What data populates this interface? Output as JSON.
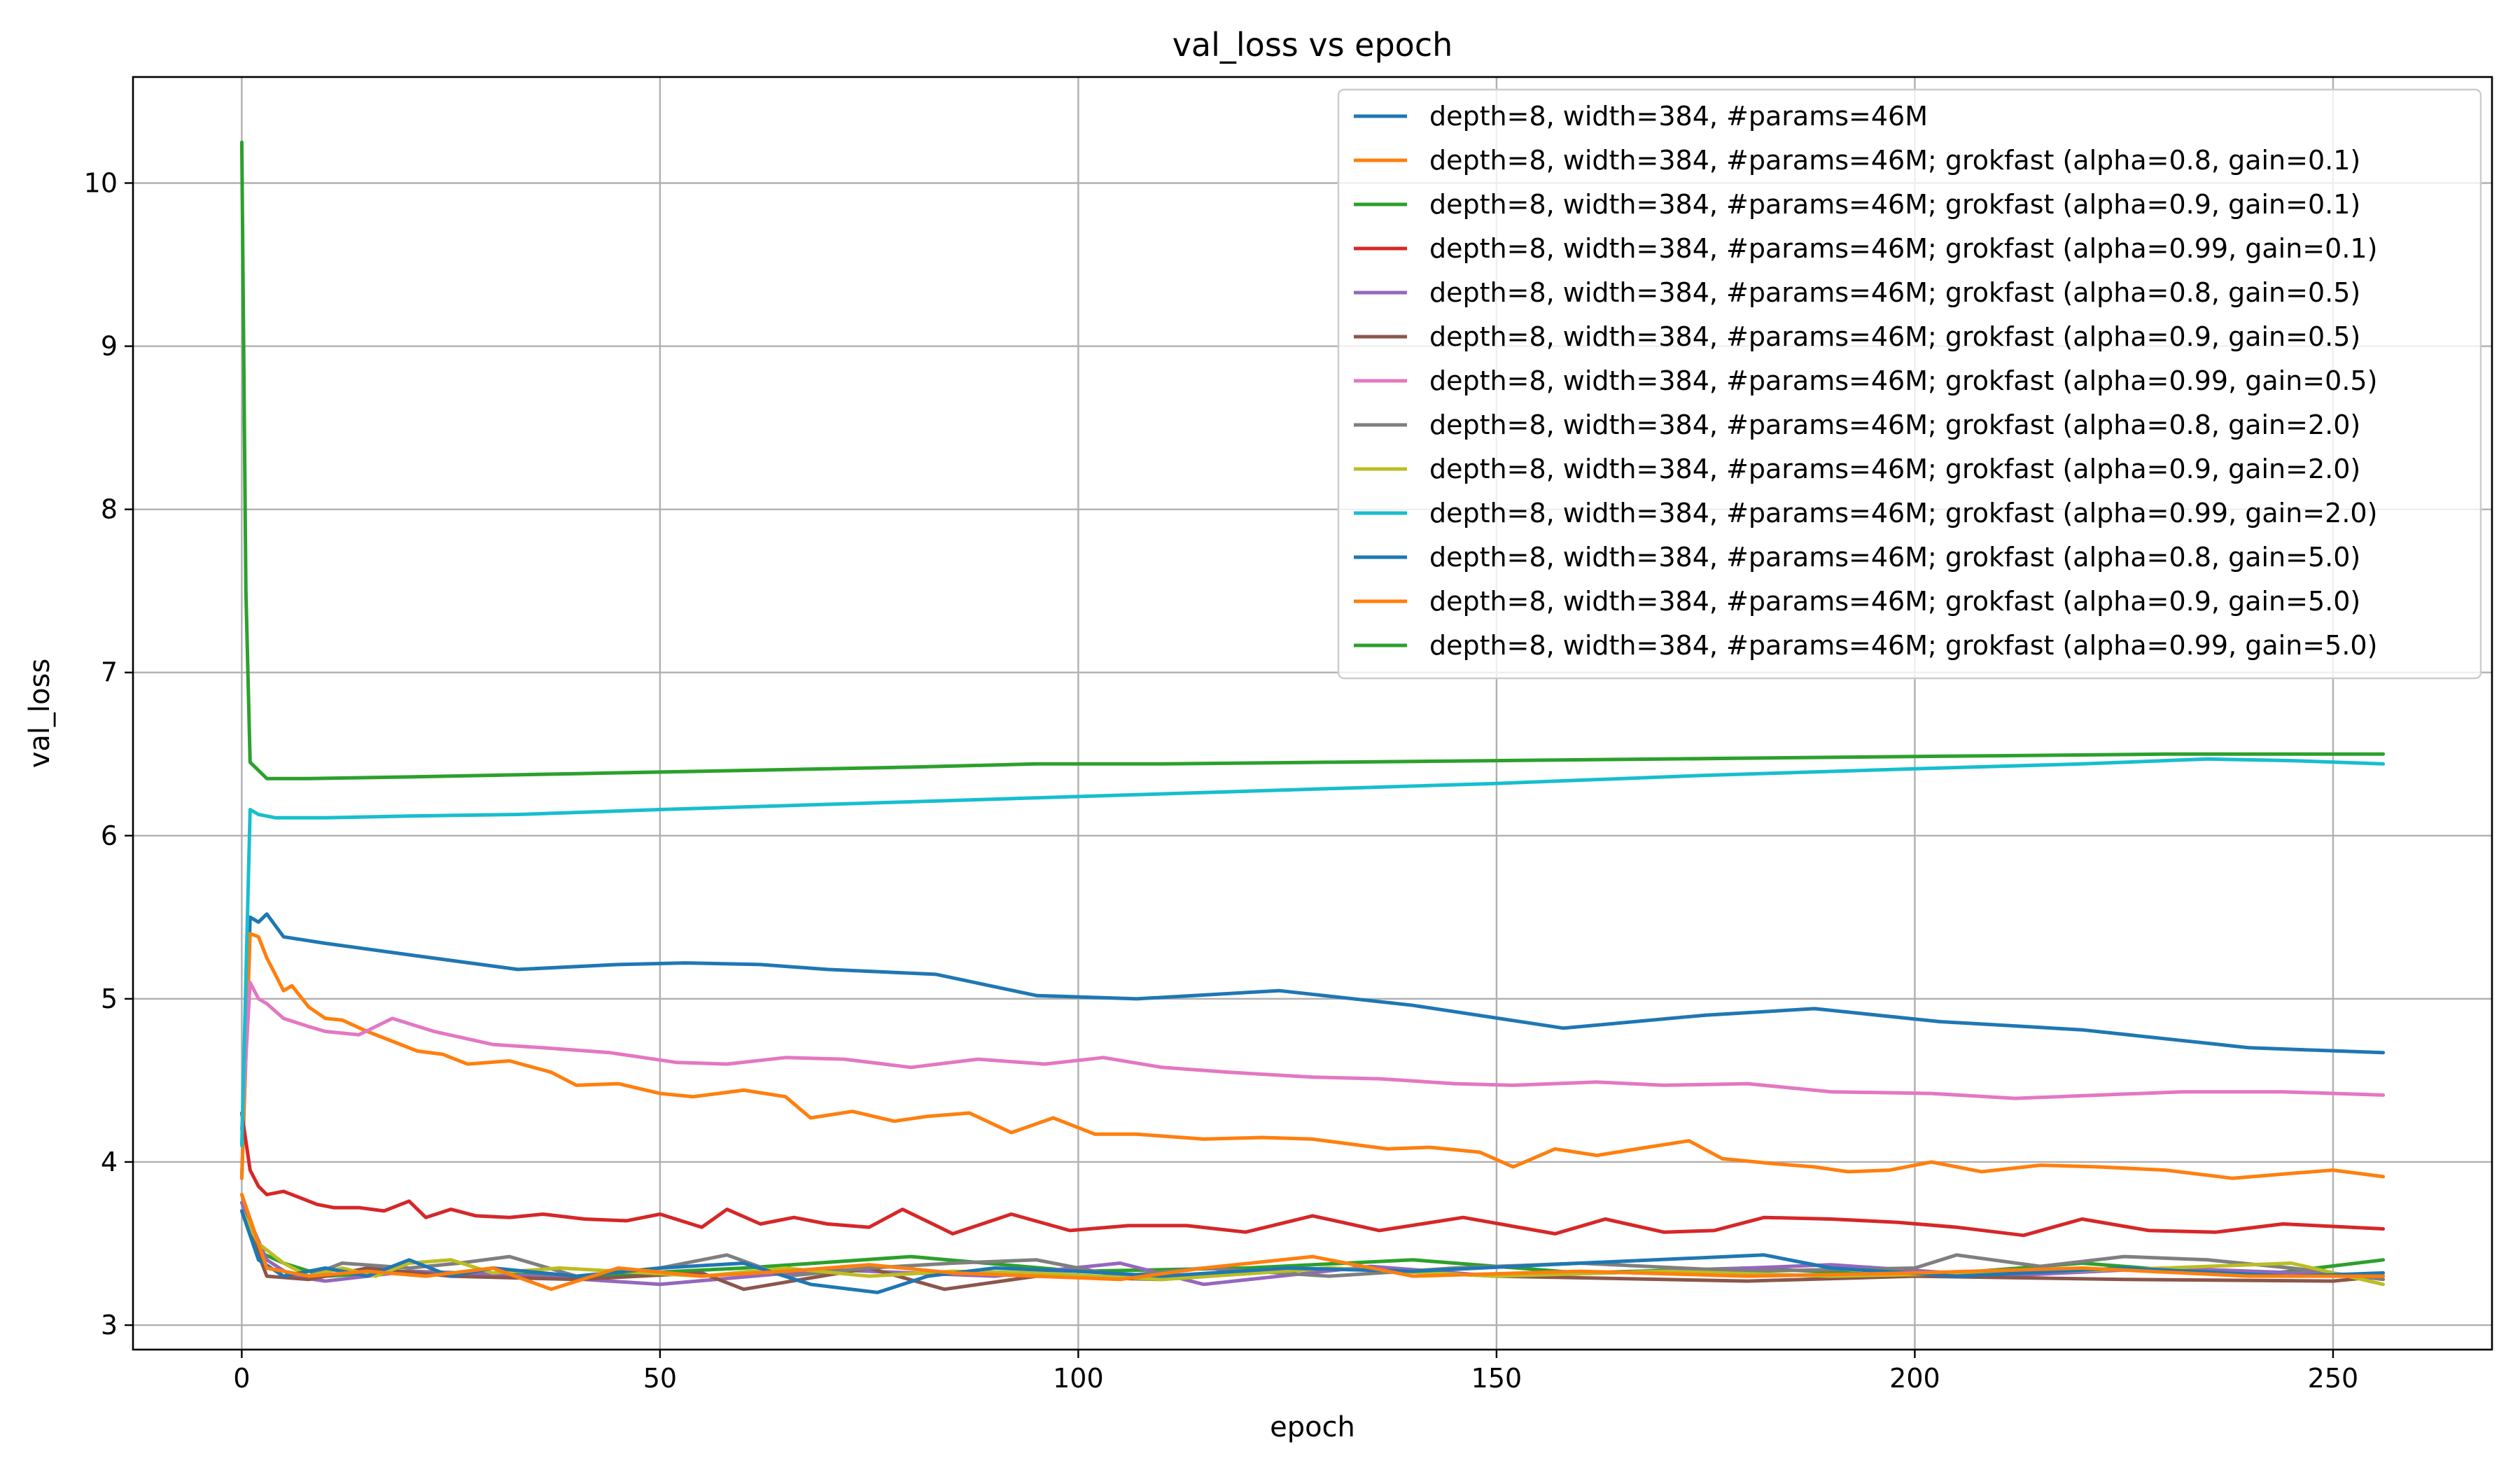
{
  "chart_data": {
    "type": "line",
    "title": "val_loss vs epoch",
    "xlabel": "epoch",
    "ylabel": "val_loss",
    "xlim": [
      -13,
      269
    ],
    "ylim": [
      2.85,
      10.65
    ],
    "xticks": [
      0,
      50,
      100,
      150,
      200,
      250
    ],
    "yticks": [
      3,
      4,
      5,
      6,
      7,
      8,
      9,
      10
    ],
    "grid": true,
    "legend_position": "top-right",
    "series": [
      {
        "name": "depth=8, width=384, #params=46M",
        "color": "#1f77b4",
        "x": [
          0,
          1,
          2,
          3,
          5,
          10,
          20,
          33,
          45,
          53,
          62,
          70,
          83,
          95,
          107,
          124,
          140,
          158,
          175,
          188,
          203,
          220,
          240,
          256
        ],
        "y": [
          3.9,
          5.5,
          5.47,
          5.52,
          5.38,
          5.34,
          5.27,
          5.18,
          5.21,
          5.22,
          5.21,
          5.18,
          5.15,
          5.02,
          5.0,
          5.05,
          4.96,
          4.82,
          4.9,
          4.94,
          4.86,
          4.81,
          4.7,
          4.67
        ]
      },
      {
        "name": "depth=8, width=384, #params=46M; grokfast (alpha=0.8, gain=0.1)",
        "color": "#ff7f0e",
        "x": [
          0,
          1,
          2,
          3,
          4,
          5,
          6,
          8,
          10,
          12,
          15,
          18,
          21,
          24,
          27,
          32,
          37,
          40,
          45,
          50,
          54,
          60,
          65,
          68,
          73,
          78,
          82,
          87,
          92,
          97,
          102,
          107,
          115,
          122,
          128,
          137,
          142,
          148,
          152,
          157,
          162,
          168,
          173,
          177,
          183,
          188,
          192,
          197,
          202,
          208,
          215,
          222,
          230,
          238,
          245,
          250,
          256
        ],
        "y": [
          3.9,
          5.4,
          5.38,
          5.25,
          5.15,
          5.05,
          5.08,
          4.95,
          4.88,
          4.87,
          4.8,
          4.74,
          4.68,
          4.66,
          4.6,
          4.62,
          4.55,
          4.47,
          4.48,
          4.42,
          4.4,
          4.44,
          4.4,
          4.27,
          4.31,
          4.25,
          4.28,
          4.3,
          4.18,
          4.27,
          4.17,
          4.17,
          4.14,
          4.15,
          4.14,
          4.08,
          4.09,
          4.06,
          3.97,
          4.08,
          4.04,
          4.09,
          4.13,
          4.02,
          3.99,
          3.97,
          3.94,
          3.95,
          4.0,
          3.94,
          3.98,
          3.97,
          3.95,
          3.9,
          3.93,
          3.95,
          3.91
        ]
      },
      {
        "name": "depth=8, width=384, #params=46M; grokfast (alpha=0.9, gain=0.1)",
        "color": "#2ca02c",
        "x": [
          0,
          2,
          5,
          10,
          20,
          40,
          60,
          80,
          100,
          120,
          140,
          160,
          180,
          200,
          220,
          240,
          256
        ],
        "y": [
          3.8,
          3.45,
          3.38,
          3.3,
          3.33,
          3.3,
          3.35,
          3.42,
          3.33,
          3.35,
          3.4,
          3.32,
          3.35,
          3.3,
          3.38,
          3.3,
          3.4
        ]
      },
      {
        "name": "depth=8, width=384, #params=46M; grokfast (alpha=0.99, gain=0.1)",
        "color": "#d62728",
        "x": [
          0,
          1,
          2,
          3,
          5,
          7,
          9,
          11,
          14,
          17,
          20,
          22,
          25,
          28,
          32,
          36,
          41,
          46,
          50,
          55,
          58,
          62,
          66,
          70,
          75,
          79,
          85,
          92,
          99,
          106,
          113,
          120,
          128,
          136,
          146,
          157,
          163,
          170,
          176,
          182,
          190,
          198,
          205,
          213,
          220,
          228,
          236,
          244,
          256
        ],
        "y": [
          4.3,
          3.95,
          3.85,
          3.8,
          3.82,
          3.78,
          3.74,
          3.72,
          3.72,
          3.7,
          3.76,
          3.66,
          3.71,
          3.67,
          3.66,
          3.68,
          3.65,
          3.64,
          3.68,
          3.6,
          3.71,
          3.62,
          3.66,
          3.62,
          3.6,
          3.71,
          3.56,
          3.68,
          3.58,
          3.61,
          3.61,
          3.57,
          3.67,
          3.58,
          3.66,
          3.56,
          3.65,
          3.57,
          3.58,
          3.66,
          3.65,
          3.63,
          3.6,
          3.55,
          3.65,
          3.58,
          3.57,
          3.62,
          3.59
        ]
      },
      {
        "name": "depth=8, width=384, #params=46M; grokfast (alpha=0.8, gain=0.5)",
        "color": "#9467bd",
        "x": [
          0,
          3,
          6,
          10,
          20,
          35,
          50,
          70,
          90,
          105,
          115,
          135,
          150,
          170,
          190,
          210,
          230,
          256
        ],
        "y": [
          3.75,
          3.4,
          3.3,
          3.27,
          3.33,
          3.3,
          3.25,
          3.34,
          3.3,
          3.38,
          3.25,
          3.36,
          3.3,
          3.33,
          3.37,
          3.3,
          3.35,
          3.3
        ]
      },
      {
        "name": "depth=8, width=384, #params=46M; grokfast (alpha=0.9, gain=0.5)",
        "color": "#8c564b",
        "x": [
          0,
          3,
          8,
          15,
          25,
          40,
          55,
          60,
          75,
          84,
          95,
          110,
          130,
          150,
          180,
          200,
          225,
          250,
          256
        ],
        "y": [
          3.7,
          3.3,
          3.28,
          3.35,
          3.3,
          3.28,
          3.32,
          3.22,
          3.35,
          3.22,
          3.3,
          3.28,
          3.35,
          3.3,
          3.27,
          3.3,
          3.28,
          3.27,
          3.3
        ]
      },
      {
        "name": "depth=8, width=384, #params=46M; grokfast (alpha=0.99, gain=0.5)",
        "color": "#e377c2",
        "x": [
          0,
          1,
          2,
          3,
          5,
          8,
          10,
          14,
          18,
          23,
          30,
          36,
          44,
          52,
          58,
          65,
          72,
          80,
          88,
          96,
          103,
          110,
          118,
          128,
          136,
          145,
          152,
          162,
          170,
          180,
          190,
          202,
          212,
          222,
          232,
          244,
          256
        ],
        "y": [
          4.2,
          5.1,
          5.0,
          4.97,
          4.88,
          4.83,
          4.8,
          4.78,
          4.88,
          4.8,
          4.72,
          4.7,
          4.67,
          4.61,
          4.6,
          4.64,
          4.63,
          4.58,
          4.63,
          4.6,
          4.64,
          4.58,
          4.55,
          4.52,
          4.51,
          4.48,
          4.47,
          4.49,
          4.47,
          4.48,
          4.43,
          4.42,
          4.39,
          4.41,
          4.43,
          4.43,
          4.41
        ]
      },
      {
        "name": "depth=8, width=384, #params=46M; grokfast (alpha=0.8, gain=2.0)",
        "color": "#7f7f7f",
        "x": [
          0,
          3,
          8,
          12,
          20,
          26,
          32,
          40,
          50,
          58,
          65,
          75,
          85,
          95,
          105,
          115,
          130,
          145,
          160,
          180,
          200,
          205,
          215,
          225,
          235,
          245,
          256
        ],
        "y": [
          3.8,
          3.35,
          3.3,
          3.38,
          3.35,
          3.38,
          3.42,
          3.3,
          3.35,
          3.43,
          3.3,
          3.35,
          3.38,
          3.4,
          3.3,
          3.35,
          3.3,
          3.35,
          3.38,
          3.33,
          3.35,
          3.43,
          3.36,
          3.42,
          3.4,
          3.35,
          3.28
        ]
      },
      {
        "name": "depth=8, width=384, #params=46M; grokfast (alpha=0.9, gain=2.0)",
        "color": "#bcbd22",
        "x": [
          0,
          2,
          5,
          8,
          12,
          16,
          20,
          25,
          30,
          38,
          45,
          55,
          65,
          75,
          85,
          95,
          110,
          130,
          150,
          170,
          190,
          210,
          230,
          245,
          256
        ],
        "y": [
          3.7,
          3.5,
          3.38,
          3.3,
          3.35,
          3.3,
          3.38,
          3.4,
          3.32,
          3.35,
          3.33,
          3.3,
          3.35,
          3.3,
          3.33,
          3.32,
          3.28,
          3.35,
          3.3,
          3.33,
          3.3,
          3.32,
          3.35,
          3.38,
          3.25
        ]
      },
      {
        "name": "depth=8, width=384, #params=46M; grokfast (alpha=0.99, gain=2.0)",
        "color": "#17becf",
        "x": [
          0,
          1,
          2,
          4,
          10,
          20,
          33,
          50,
          75,
          100,
          125,
          150,
          175,
          200,
          220,
          235,
          245,
          256
        ],
        "y": [
          4.1,
          6.16,
          6.13,
          6.11,
          6.11,
          6.12,
          6.13,
          6.16,
          6.2,
          6.24,
          6.28,
          6.32,
          6.37,
          6.41,
          6.44,
          6.47,
          6.46,
          6.44
        ]
      },
      {
        "name": "depth=8, width=384, #params=46M; grokfast (alpha=0.8, gain=5.0)",
        "color": "#1f77b4",
        "x": [
          0,
          2,
          5,
          10,
          15,
          20,
          25,
          30,
          40,
          50,
          60,
          68,
          76,
          82,
          90,
          100,
          110,
          125,
          140,
          160,
          182,
          190,
          205,
          225,
          245,
          256
        ],
        "y": [
          3.7,
          3.4,
          3.3,
          3.35,
          3.3,
          3.4,
          3.3,
          3.35,
          3.3,
          3.35,
          3.38,
          3.25,
          3.2,
          3.3,
          3.35,
          3.33,
          3.3,
          3.35,
          3.33,
          3.38,
          3.43,
          3.35,
          3.3,
          3.35,
          3.3,
          3.32
        ]
      },
      {
        "name": "depth=8, width=384, #params=46M; grokfast (alpha=0.9, gain=5.0)",
        "color": "#ff7f0e",
        "x": [
          0,
          3,
          8,
          15,
          22,
          30,
          37,
          45,
          55,
          65,
          75,
          85,
          95,
          105,
          115,
          128,
          140,
          160,
          180,
          200,
          220,
          240,
          256
        ],
        "y": [
          3.8,
          3.35,
          3.3,
          3.33,
          3.3,
          3.35,
          3.22,
          3.35,
          3.3,
          3.33,
          3.37,
          3.32,
          3.3,
          3.28,
          3.35,
          3.42,
          3.3,
          3.33,
          3.3,
          3.32,
          3.35,
          3.3,
          3.3
        ]
      },
      {
        "name": "depth=8, width=384, #params=46M; grokfast (alpha=0.99, gain=5.0)",
        "color": "#2ca02c",
        "x": [
          0,
          0.5,
          1,
          2,
          3,
          8,
          20,
          40,
          60,
          80,
          95,
          110,
          130,
          150,
          170,
          190,
          210,
          230,
          250,
          256
        ],
        "y": [
          10.25,
          7.5,
          6.45,
          6.4,
          6.35,
          6.35,
          6.36,
          6.38,
          6.4,
          6.42,
          6.44,
          6.44,
          6.45,
          6.46,
          6.47,
          6.48,
          6.49,
          6.5,
          6.5,
          6.5
        ]
      }
    ]
  }
}
